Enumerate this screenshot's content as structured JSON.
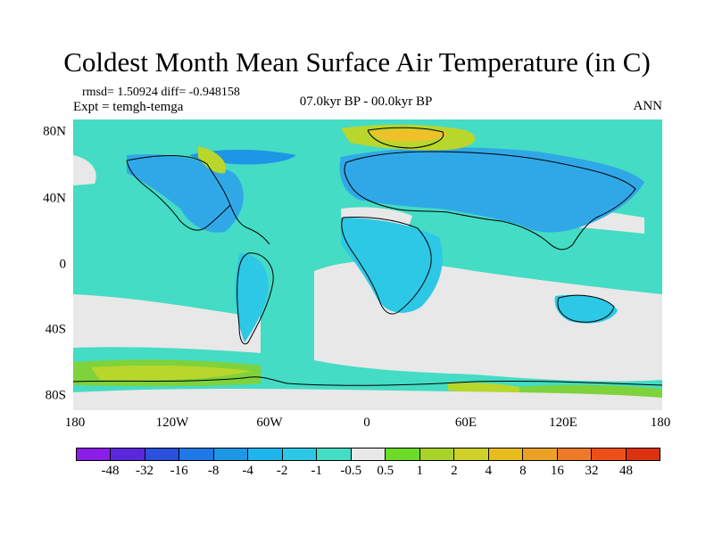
{
  "header": {
    "title": "Coldest Month Mean Surface Air Temperature (in C)",
    "stats": "rmsd= 1.50924 diff= -0.948158",
    "experiment": "Expt = temgh-temga",
    "period": "07.0kyr BP - 00.0kyr BP",
    "season": "ANN"
  },
  "map": {
    "projection": "cylindrical equidistant",
    "lon_range": [
      -180,
      180
    ],
    "lat_range": [
      -90,
      90
    ],
    "lat_ticks": [
      "80N",
      "40N",
      "0",
      "40S",
      "80S"
    ],
    "lon_ticks": [
      "180",
      "120W",
      "60W",
      "0",
      "60E",
      "120E",
      "180"
    ],
    "colors": {
      "neutral": "#e8e8e8",
      "neg_small": "#44dcc4",
      "neg_mid": "#2dc8e6",
      "neg_large": "#30a8e8",
      "pos_small": "#7ed23c",
      "pos_mid": "#b9d62c",
      "pos_large": "#f0c02a",
      "coast": "#000000"
    }
  },
  "colorbar": {
    "labels": [
      "-48",
      "-32",
      "-16",
      "-8",
      "-4",
      "-2",
      "-1",
      "-0.5",
      "0.5",
      "1",
      "2",
      "4",
      "8",
      "16",
      "32",
      "48"
    ],
    "colors": [
      "#8a1ee6",
      "#5a28dc",
      "#2a50dc",
      "#1e78e6",
      "#1e96e6",
      "#1eb4ec",
      "#2dc8e6",
      "#44dcc4",
      "#e8e8e8",
      "#6cdc28",
      "#a8d42a",
      "#cfd02a",
      "#e8bc1e",
      "#eca028",
      "#ec7a28",
      "#ec5018",
      "#dc3210"
    ]
  }
}
